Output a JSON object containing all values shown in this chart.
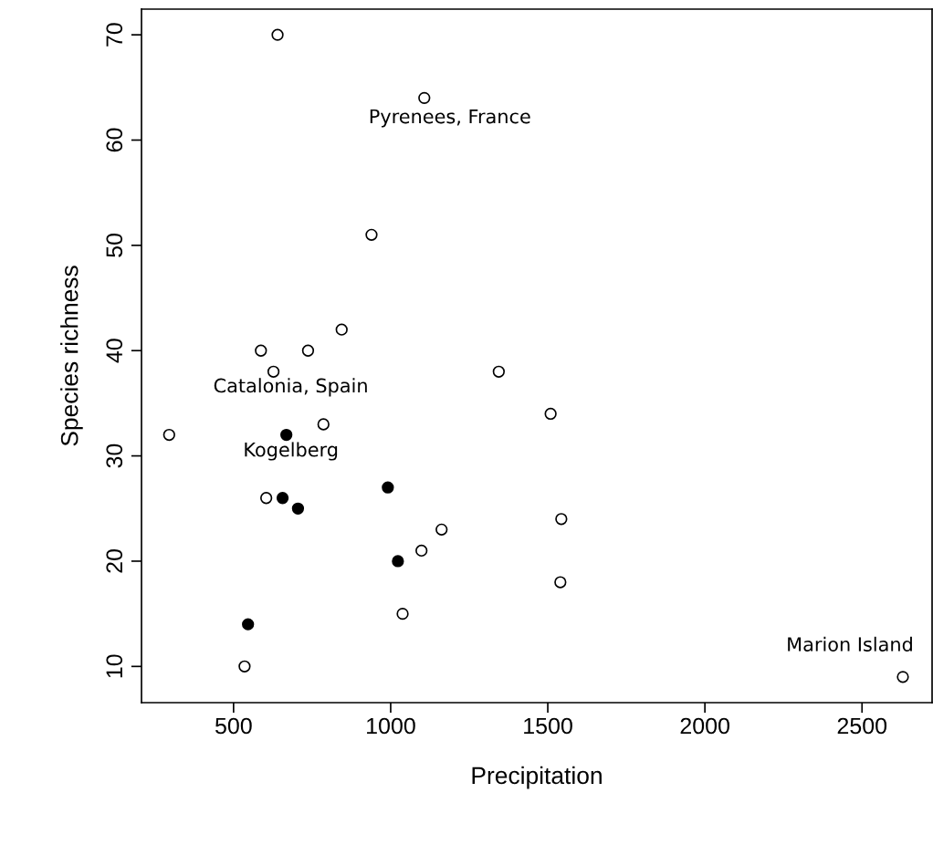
{
  "chart_data": {
    "type": "scatter",
    "xlabel": "Precipitation",
    "ylabel": "Species richness",
    "xlim": [
      207,
      2723
    ],
    "ylim": [
      6.56,
      72.44
    ],
    "xticks": [
      500,
      1000,
      1500,
      2000,
      2500
    ],
    "yticks": [
      10,
      20,
      30,
      40,
      50,
      60,
      70
    ],
    "grid": false,
    "legend": false,
    "marker": "circle",
    "series": [
      {
        "color": "#ffffff",
        "x": [
          640,
          1107,
          939,
          844,
          587,
          737,
          627,
          1344,
          1509,
          786,
          295,
          604,
          1543,
          1162,
          1098,
          1540,
          1038,
          535,
          2630
        ],
        "values": [
          70,
          64,
          51,
          42,
          40,
          40,
          38,
          38,
          34,
          33,
          32,
          26,
          24,
          23,
          21,
          18,
          15,
          10,
          9
        ]
      },
      {
        "color": "#000000",
        "x": [
          668,
          656,
          705,
          991,
          1023,
          546
        ],
        "values": [
          32,
          26,
          25,
          27,
          20,
          14
        ]
      }
    ],
    "annotations": [
      {
        "text": "Pyrenees, France",
        "x": 1107,
        "y": 64
      },
      {
        "text": "Catalonia, Spain",
        "x": 627,
        "y": 38
      },
      {
        "text": "Kogelberg",
        "x": 668,
        "y": 32
      },
      {
        "text": "Marion Island",
        "x": 2630,
        "y": 9
      }
    ]
  }
}
